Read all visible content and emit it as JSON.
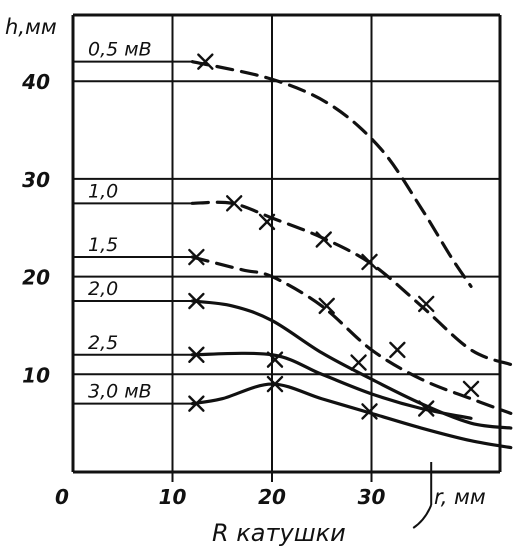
{
  "chart_data": {
    "type": "line",
    "xlabel": "r, мм",
    "ylabel": "h,мм",
    "x_caption": "R катушки",
    "xlim": [
      0,
      45
    ],
    "ylim": [
      0,
      45
    ],
    "x_ticks": [
      0,
      10,
      20,
      30
    ],
    "y_ticks": [
      10,
      20,
      30,
      40
    ],
    "grid": true,
    "coil_marker_x": 36,
    "series": [
      {
        "name": "0,5 мВ",
        "label_y": 42,
        "dashed": true,
        "curve": [
          [
            12,
            42
          ],
          [
            20,
            40.2
          ],
          [
            26,
            37.5
          ],
          [
            31,
            33
          ],
          [
            35,
            27
          ],
          [
            38,
            22
          ],
          [
            40,
            19
          ]
        ],
        "markers": [
          [
            13.3,
            42
          ]
        ]
      },
      {
        "name": "1,0",
        "label_y": 27.5,
        "dashed": true,
        "curve": [
          [
            12,
            27.5
          ],
          [
            16,
            27.5
          ],
          [
            20,
            26
          ],
          [
            25,
            24
          ],
          [
            30,
            21.3
          ],
          [
            35,
            17
          ],
          [
            40,
            12.5
          ],
          [
            44,
            11
          ]
        ],
        "markers": [
          [
            16.2,
            27.5
          ],
          [
            19.5,
            25.6
          ],
          [
            25.2,
            23.8
          ],
          [
            29.8,
            21.5
          ],
          [
            35.5,
            17.2
          ]
        ]
      },
      {
        "name": "1,5",
        "label_y": 22,
        "dashed": true,
        "curve": [
          [
            12,
            22
          ],
          [
            17,
            20.7
          ],
          [
            20,
            20
          ],
          [
            25,
            17
          ],
          [
            30,
            12.5
          ],
          [
            35,
            9.5
          ],
          [
            40,
            7.5
          ],
          [
            44,
            6
          ]
        ],
        "markers": [
          [
            12.4,
            22
          ],
          [
            25.5,
            17
          ],
          [
            28.7,
            11.2
          ],
          [
            32.6,
            12.5
          ],
          [
            40,
            8.5
          ]
        ]
      },
      {
        "name": "2,0",
        "label_y": 17.5,
        "dashed": false,
        "curve": [
          [
            12,
            17.5
          ],
          [
            16,
            17
          ],
          [
            20,
            15.5
          ],
          [
            25,
            12.2
          ],
          [
            30,
            9.5
          ],
          [
            35,
            7
          ],
          [
            40,
            5
          ],
          [
            44,
            4.5
          ]
        ],
        "markers": [
          [
            12.4,
            17.5
          ]
        ]
      },
      {
        "name": "2,5",
        "label_y": 12,
        "dashed": false,
        "curve": [
          [
            12,
            12
          ],
          [
            20,
            12
          ],
          [
            25,
            10
          ],
          [
            30,
            8
          ],
          [
            35,
            6.5
          ],
          [
            40,
            5.5
          ]
        ],
        "markers": [
          [
            12.4,
            12
          ],
          [
            20.3,
            11.5
          ],
          [
            35.5,
            6.5
          ]
        ]
      },
      {
        "name": "3,0 мВ",
        "label_y": 7,
        "dashed": false,
        "curve": [
          [
            12,
            7
          ],
          [
            15,
            7.5
          ],
          [
            20,
            9
          ],
          [
            25,
            7.5
          ],
          [
            30,
            6
          ],
          [
            35,
            4.5
          ],
          [
            40,
            3.2
          ],
          [
            44,
            2.5
          ]
        ],
        "markers": [
          [
            12.4,
            7
          ],
          [
            20.3,
            9
          ],
          [
            29.8,
            6.2
          ]
        ]
      }
    ]
  }
}
